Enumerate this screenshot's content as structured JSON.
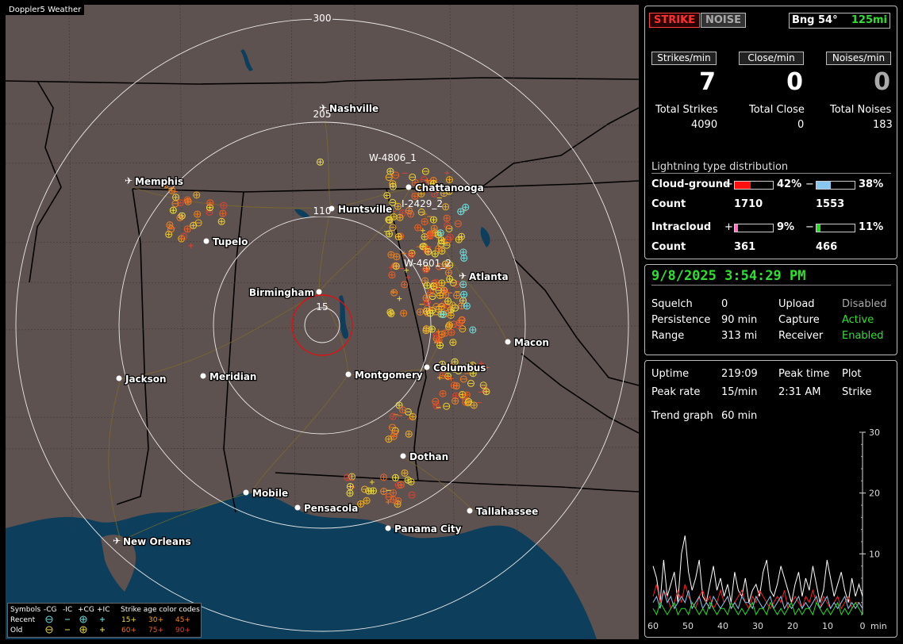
{
  "map": {
    "title": "Doppler5 Weather",
    "ring_labels": [
      "300",
      "205",
      "110",
      "15"
    ],
    "cities": [
      {
        "name": "Nashville",
        "type": "airport"
      },
      {
        "name": "Memphis",
        "type": "airport"
      },
      {
        "name": "Chattanooga",
        "type": "dot"
      },
      {
        "name": "Huntsville",
        "type": "dot"
      },
      {
        "name": "Tupelo",
        "type": "dot"
      },
      {
        "name": "Atlanta",
        "type": "airport"
      },
      {
        "name": "Birmingham",
        "type": "dot"
      },
      {
        "name": "Macon",
        "type": "dot"
      },
      {
        "name": "Columbus",
        "type": "dot"
      },
      {
        "name": "Montgomery",
        "type": "dot"
      },
      {
        "name": "Jackson",
        "type": "dot"
      },
      {
        "name": "Meridian",
        "type": "dot"
      },
      {
        "name": "Dothan",
        "type": "dot"
      },
      {
        "name": "Mobile",
        "type": "dot"
      },
      {
        "name": "Pensacola",
        "type": "dot"
      },
      {
        "name": "Tallahassee",
        "type": "dot"
      },
      {
        "name": "Panama City",
        "type": "dot"
      },
      {
        "name": "New Orleans",
        "type": "airport"
      }
    ],
    "storm_labels": [
      "W-4806_1",
      "I-2429_2",
      "W-4601_2"
    ],
    "legend": {
      "row_labels": [
        "Symbols",
        "Recent",
        "Old"
      ],
      "symbol_headers": [
        "-CG",
        "-IC",
        "+CG",
        "+IC"
      ],
      "age_header": "Strike age color codes",
      "recent_ages": [
        "15+",
        "30+",
        "45+"
      ],
      "old_ages": [
        "60+",
        "75+",
        "90+"
      ]
    }
  },
  "header": {
    "strike_button": "STRIKE",
    "noise_button": "NOISE",
    "bearing": "Bng 54°",
    "range": "125mi"
  },
  "rates": {
    "strikes_label": "Strikes/min",
    "close_label": "Close/min",
    "noises_label": "Noises/min",
    "strikes_value": "7",
    "close_value": "0",
    "noises_value": "0"
  },
  "totals": {
    "strikes_label": "Total Strikes",
    "close_label": "Total Close",
    "noises_label": "Total Noises",
    "strikes_value": "4090",
    "close_value": "0",
    "noises_value": "183"
  },
  "distribution": {
    "title": "Lightning type distribution",
    "cg_label": "Cloud-ground",
    "ic_label": "Intracloud",
    "count_label": "Count",
    "plus_sign": "+",
    "minus_sign": "−",
    "cg_pos_pct": "42%",
    "cg_neg_pct": "38%",
    "ic_pos_pct": "9%",
    "ic_neg_pct": "11%",
    "cg_pos_frac": 0.42,
    "cg_neg_frac": 0.38,
    "ic_pos_frac": 0.09,
    "ic_neg_frac": 0.11,
    "cg_pos_count": "1710",
    "cg_neg_count": "1553",
    "ic_pos_count": "361",
    "ic_neg_count": "466",
    "colors": {
      "cg_pos": "#ff1010",
      "cg_neg": "#88c8f0",
      "ic_pos": "#ff70c0",
      "ic_neg": "#20e020"
    }
  },
  "status": {
    "datetime": "9/8/2025 3:54:29 PM",
    "squelch_label": "Squelch",
    "squelch_value": "0",
    "persistence_label": "Persistence",
    "persistence_value": "90 min",
    "range_label": "Range",
    "range_value": "313 mi",
    "upload_label": "Upload",
    "upload_value": "Disabled",
    "capture_label": "Capture",
    "capture_value": "Active",
    "receiver_label": "Receiver",
    "receiver_value": "Enabled"
  },
  "stats": {
    "uptime_label": "Uptime",
    "uptime_value": "219:09",
    "peak_time_label": "Peak time",
    "peak_time_value": "2:31 AM",
    "plot_label": "Plot",
    "plot_value": "Strike",
    "peak_rate_label": "Peak rate",
    "peak_rate_value": "15/min",
    "trend_label": "Trend graph",
    "trend_value": "60 min"
  },
  "chart_data": {
    "type": "line",
    "xlabel": "min",
    "x_ticks": [
      "60",
      "50",
      "40",
      "30",
      "20",
      "10",
      "0"
    ],
    "y_ticks": [
      "30",
      "20",
      "10"
    ],
    "ylim": [
      0,
      30
    ],
    "xlim": [
      60,
      0
    ],
    "series": [
      {
        "color": "#ffffff",
        "values": [
          8,
          6,
          2,
          9,
          3,
          5,
          7,
          2,
          10,
          13,
          7,
          4,
          6,
          9,
          3,
          2,
          5,
          8,
          4,
          6,
          3,
          5,
          2,
          7,
          4,
          3,
          6,
          2,
          4,
          5,
          3,
          7,
          9,
          4,
          3,
          5,
          8,
          6,
          4,
          2,
          5,
          7,
          3,
          6,
          4,
          8,
          5,
          2,
          4,
          9,
          6,
          3,
          5,
          7,
          4,
          2,
          6,
          3,
          5,
          3
        ]
      },
      {
        "color": "#ff2020",
        "values": [
          3,
          5,
          2,
          4,
          3,
          1,
          2,
          4,
          2,
          5,
          3,
          2,
          1,
          3,
          4,
          2,
          3,
          1,
          2,
          4,
          2,
          3,
          1,
          2,
          3,
          4,
          2,
          1,
          3,
          2,
          4,
          3,
          2,
          1,
          2,
          3,
          2,
          4,
          1,
          2,
          3,
          2,
          1,
          3,
          2,
          4,
          2,
          1,
          3,
          2,
          1,
          2,
          3,
          1,
          2,
          3,
          1,
          2,
          2,
          1
        ]
      },
      {
        "color": "#88c8f0",
        "values": [
          2,
          3,
          1,
          4,
          2,
          3,
          1,
          2,
          3,
          2,
          4,
          1,
          2,
          3,
          1,
          2,
          1,
          3,
          2,
          1,
          2,
          3,
          1,
          2,
          1,
          3,
          2,
          2,
          1,
          3,
          2,
          1,
          2,
          3,
          1,
          2,
          3,
          1,
          2,
          1,
          2,
          3,
          1,
          2,
          1,
          2,
          3,
          1,
          2,
          3,
          1,
          2,
          1,
          2,
          3,
          1,
          2,
          1,
          2,
          1
        ]
      },
      {
        "color": "#20e020",
        "values": [
          1,
          0,
          2,
          1,
          0,
          1,
          2,
          0,
          1,
          1,
          0,
          2,
          1,
          0,
          1,
          0,
          2,
          1,
          0,
          1,
          1,
          0,
          2,
          1,
          0,
          1,
          0,
          1,
          2,
          0,
          1,
          1,
          0,
          2,
          1,
          0,
          1,
          0,
          1,
          2,
          0,
          1,
          0,
          1,
          1,
          0,
          2,
          1,
          0,
          1,
          0,
          1,
          2,
          0,
          1,
          0,
          1,
          2,
          1,
          0
        ]
      }
    ]
  }
}
